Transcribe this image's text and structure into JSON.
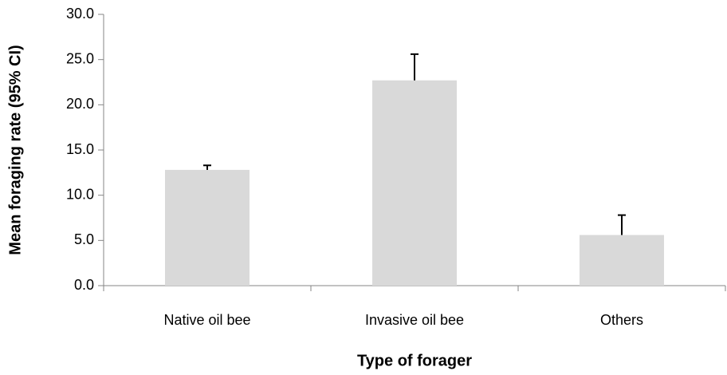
{
  "chart_data": {
    "type": "bar",
    "x_label": "Type of forager",
    "y_label": "Mean foraging rate (95% CI)",
    "categories": [
      "Native oil bee",
      "Invasive oil bee",
      "Others"
    ],
    "values": [
      12.8,
      22.7,
      5.6
    ],
    "errors": [
      0.5,
      2.9,
      2.2
    ],
    "color": "#d9d9d9",
    "error_color": "#000000",
    "ylim": [
      0,
      30
    ],
    "yticks": [
      {
        "value": 0,
        "label": "0.0"
      },
      {
        "value": 5,
        "label": "5.0"
      },
      {
        "value": 10,
        "label": "10.0"
      },
      {
        "value": 15,
        "label": "15.0"
      },
      {
        "value": 20,
        "label": "20.0"
      },
      {
        "value": 25,
        "label": "25.0"
      },
      {
        "value": 30,
        "label": "30.0"
      }
    ],
    "grid": false
  }
}
